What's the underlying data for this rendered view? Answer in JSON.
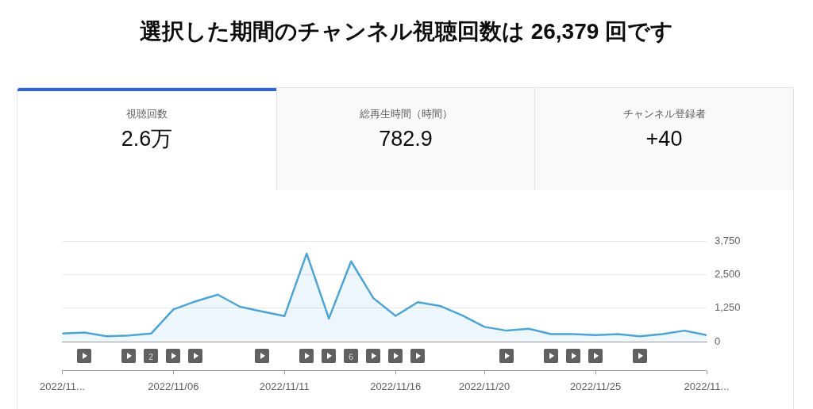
{
  "chart_data": {
    "type": "area",
    "title": "選択した期間のチャンネル視聴回数は 26,379 回です",
    "annotations": [
      "視聴回数",
      "2.6万",
      "総再生時間（時間）",
      "782.9",
      "チャンネル登録者",
      "+40",
      "2",
      "6"
    ],
    "x": [
      "2022-11-01",
      "2022-11-02",
      "2022-11-03",
      "2022-11-04",
      "2022-11-05",
      "2022-11-06",
      "2022-11-07",
      "2022-11-08",
      "2022-11-09",
      "2022-11-10",
      "2022-11-11",
      "2022-11-12",
      "2022-11-13",
      "2022-11-14",
      "2022-11-15",
      "2022-11-16",
      "2022-11-17",
      "2022-11-18",
      "2022-11-19",
      "2022-11-20",
      "2022-11-21",
      "2022-11-22",
      "2022-11-23",
      "2022-11-24",
      "2022-11-25",
      "2022-11-26",
      "2022-11-27",
      "2022-11-28",
      "2022-11-29",
      "2022-11-30"
    ],
    "values": [
      300,
      340,
      200,
      230,
      300,
      1200,
      1500,
      1750,
      1300,
      1120,
      950,
      3280,
      860,
      2990,
      1620,
      960,
      1470,
      1330,
      980,
      550,
      410,
      480,
      280,
      280,
      240,
      280,
      200,
      280,
      410,
      240
    ],
    "color": "#4ea5d4",
    "xlim": [
      "2022-11-01",
      "2022-11-30"
    ],
    "xticks": [
      {
        "value": "2022-11-01",
        "label": "2022/11..."
      },
      {
        "value": "2022-11-06",
        "label": "2022/11/06"
      },
      {
        "value": "2022-11-11",
        "label": "2022/11/11"
      },
      {
        "value": "2022-11-16",
        "label": "2022/11/16"
      },
      {
        "value": "2022-11-20",
        "label": "2022/11/20"
      },
      {
        "value": "2022-11-25",
        "label": "2022/11/25"
      },
      {
        "value": "2022-11-30",
        "label": "2022/11..."
      }
    ],
    "ylim": [
      0,
      3750
    ],
    "yticks": [
      0,
      {
        "value": 1250,
        "label": "1,250"
      },
      {
        "value": 2500,
        "label": "2,500"
      },
      {
        "value": 3750,
        "label": "3,750"
      }
    ],
    "grid": "y"
  }
}
